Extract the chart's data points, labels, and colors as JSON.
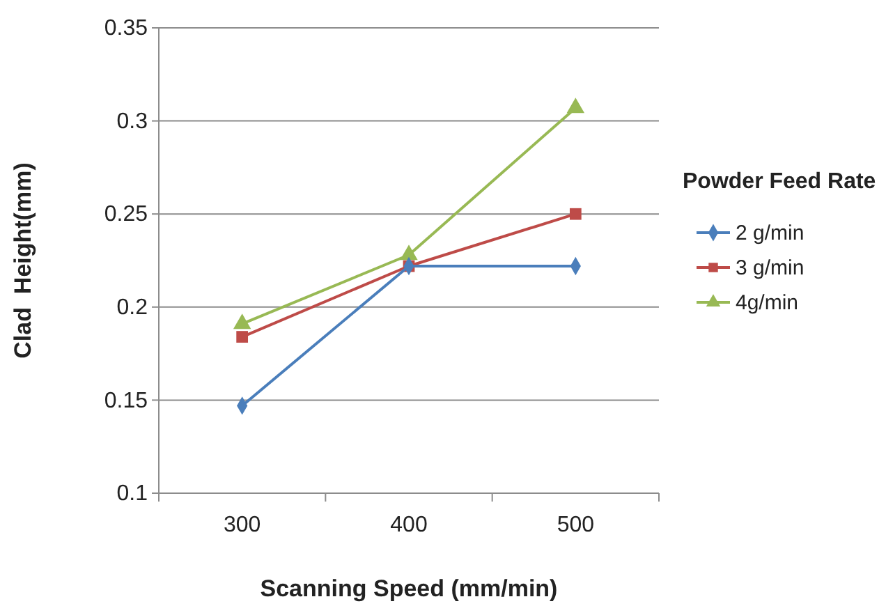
{
  "chart_data": {
    "type": "line",
    "xlabel": "Scanning Speed (mm/min)",
    "ylabel": "Clad  Height(mm)",
    "legend_title": "Powder Feed Rate",
    "categories": [
      "300",
      "400",
      "500"
    ],
    "series": [
      {
        "name": "2 g/min",
        "color": "#4a7ebb",
        "marker": "diamond",
        "values": [
          0.147,
          0.222,
          0.222
        ]
      },
      {
        "name": "3 g/min",
        "color": "#be4b48",
        "marker": "square",
        "values": [
          0.184,
          0.222,
          0.25
        ]
      },
      {
        "name": "4g/min",
        "color": "#98b954",
        "marker": "triangle",
        "values": [
          0.191,
          0.228,
          0.307
        ]
      }
    ],
    "ylim": [
      0.1,
      0.35
    ],
    "yticks": [
      0.1,
      0.15,
      0.2,
      0.25,
      0.3,
      0.35
    ],
    "grid": "y",
    "legend": "right"
  }
}
